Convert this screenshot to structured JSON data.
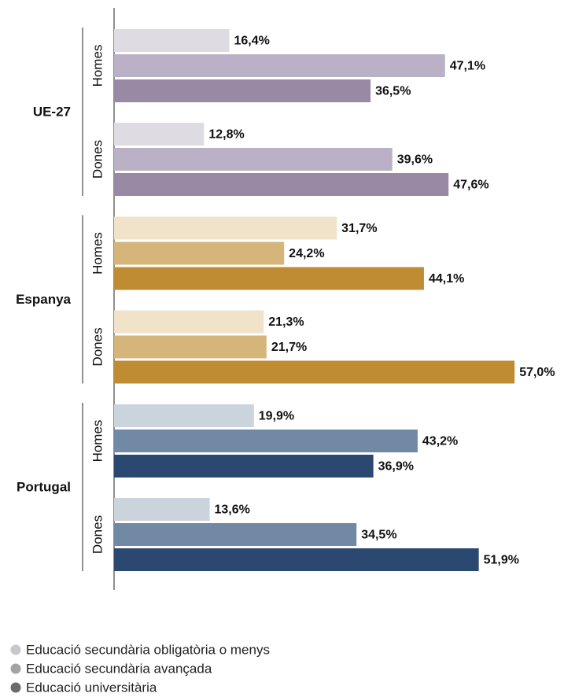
{
  "chart_data": {
    "type": "bar",
    "xlim": [
      0,
      60
    ],
    "groups": [
      {
        "name": "UE-27",
        "colors": [
          "#dedbe2",
          "#bab1c6",
          "#9989a4"
        ],
        "categories": [
          "Homes",
          "Dones"
        ],
        "values": [
          [
            16.4,
            47.1,
            36.5
          ],
          [
            12.8,
            39.6,
            47.6
          ]
        ],
        "value_labels": [
          [
            "16,4%",
            "47,1%",
            "36,5%"
          ],
          [
            "12,8%",
            "39,6%",
            "47,6%"
          ]
        ]
      },
      {
        "name": "Espanya",
        "colors": [
          "#f0e3c9",
          "#d5b57a",
          "#c08c33"
        ],
        "categories": [
          "Homes",
          "Dones"
        ],
        "values": [
          [
            31.7,
            24.2,
            44.1
          ],
          [
            21.3,
            21.7,
            57.0
          ]
        ],
        "value_labels": [
          [
            "31,7%",
            "24,2%",
            "44,1%"
          ],
          [
            "21,3%",
            "21,7%",
            "57,0%"
          ]
        ]
      },
      {
        "name": "Portugal",
        "colors": [
          "#cbd3dc",
          "#7189a5",
          "#2b4870"
        ],
        "categories": [
          "Homes",
          "Dones"
        ],
        "values": [
          [
            19.9,
            43.2,
            36.9
          ],
          [
            13.6,
            34.5,
            51.9
          ]
        ],
        "value_labels": [
          [
            "19,9%",
            "43,2%",
            "36,9%"
          ],
          [
            "13,6%",
            "34,5%",
            "51,9%"
          ]
        ]
      }
    ],
    "legend": [
      {
        "name": "Educació secundària obligatòria o menys",
        "color": "#c8c7cb"
      },
      {
        "name": "Educació secundària avançada",
        "color": "#a3a2a6"
      },
      {
        "name": "Educació universitària",
        "color": "#6c6a6e"
      }
    ]
  }
}
